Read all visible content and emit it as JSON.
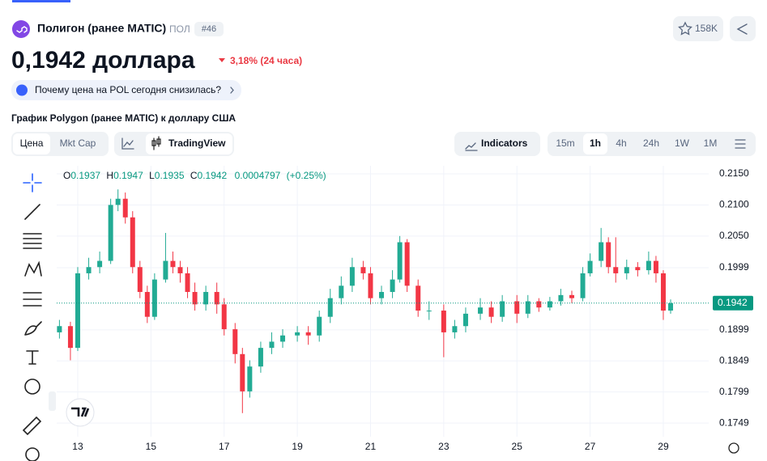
{
  "header": {
    "name": "Полигон (ранее MATIC)",
    "ticker": "ПОЛ",
    "rank": "#46",
    "watchlist_count": "158K",
    "price": "0,1942 доллара",
    "change": "3,18% (24 часа)",
    "question": "Почему цена на POL сегодня снизилась?"
  },
  "chart_section": {
    "heading": "График Polygon (ранее MATIC) к доллару США",
    "tabs": [
      "Цена",
      "Mkt Cap"
    ],
    "view_button": "TradingView",
    "indicators": "Indicators",
    "timeframes": [
      "15m",
      "1h",
      "4h",
      "24h",
      "1W",
      "1M"
    ]
  },
  "chart_data": {
    "type": "candlestick",
    "x": [
      12.5,
      12.8,
      13.0,
      13.3,
      13.6,
      13.9,
      14.1,
      14.3,
      14.5,
      14.7,
      14.9,
      15.1,
      15.4,
      15.6,
      15.8,
      16.0,
      16.2,
      16.5,
      16.8,
      17.0,
      17.3,
      17.5,
      17.7,
      18.0,
      18.3,
      18.6,
      19.0,
      19.3,
      19.6,
      19.9,
      20.2,
      20.5,
      20.8,
      21.0,
      21.3,
      21.6,
      21.8,
      22.0,
      22.3,
      22.6,
      23.0,
      23.3,
      23.6,
      24.0,
      24.3,
      24.6,
      25.0,
      25.3,
      25.6,
      25.9,
      26.2,
      26.5,
      26.8,
      27.0,
      27.3,
      27.5,
      27.7,
      28.0,
      28.3,
      28.6,
      28.8,
      29.0,
      29.2
    ],
    "open": [
      0.1895,
      0.1905,
      0.187,
      0.199,
      0.2,
      0.201,
      0.21,
      0.211,
      0.208,
      0.2,
      0.196,
      0.192,
      0.198,
      0.201,
      0.2,
      0.199,
      0.196,
      0.194,
      0.196,
      0.194,
      0.19,
      0.186,
      0.18,
      0.184,
      0.187,
      0.188,
      0.189,
      0.1895,
      0.189,
      0.192,
      0.195,
      0.197,
      0.2,
      0.199,
      0.195,
      0.196,
      0.198,
      0.204,
      0.197,
      0.193,
      0.193,
      0.1895,
      0.1905,
      0.1925,
      0.1935,
      0.192,
      0.1945,
      0.1925,
      0.1945,
      0.1935,
      0.1945,
      0.1955,
      0.195,
      0.199,
      0.201,
      0.204,
      0.2,
      0.199,
      0.2,
      0.1995,
      0.201,
      0.199,
      0.193
    ],
    "high": [
      0.1915,
      0.1912,
      0.2,
      0.2015,
      0.2025,
      0.211,
      0.2125,
      0.212,
      0.209,
      0.201,
      0.197,
      0.199,
      0.2055,
      0.2025,
      0.201,
      0.2,
      0.1975,
      0.197,
      0.1975,
      0.195,
      0.191,
      0.187,
      0.185,
      0.188,
      0.1895,
      0.19,
      0.1905,
      0.1905,
      0.193,
      0.1965,
      0.1985,
      0.2015,
      0.201,
      0.2,
      0.197,
      0.1995,
      0.205,
      0.2045,
      0.198,
      0.1945,
      0.194,
      0.1915,
      0.1935,
      0.195,
      0.1945,
      0.1955,
      0.1955,
      0.1955,
      0.195,
      0.1952,
      0.1965,
      0.1962,
      0.2,
      0.2022,
      0.2063,
      0.2048,
      0.2048,
      0.2012,
      0.2008,
      0.2025,
      0.2018,
      0.1995,
      0.1948
    ],
    "low": [
      0.1885,
      0.185,
      0.1865,
      0.198,
      0.199,
      0.2005,
      0.209,
      0.207,
      0.199,
      0.195,
      0.191,
      0.1915,
      0.1975,
      0.199,
      0.1975,
      0.195,
      0.193,
      0.193,
      0.1925,
      0.189,
      0.1845,
      0.1765,
      0.179,
      0.183,
      0.186,
      0.187,
      0.188,
      0.1875,
      0.188,
      0.191,
      0.194,
      0.196,
      0.198,
      0.194,
      0.194,
      0.195,
      0.1975,
      0.196,
      0.192,
      0.1915,
      0.1855,
      0.1885,
      0.1895,
      0.1915,
      0.191,
      0.1912,
      0.191,
      0.1918,
      0.1928,
      0.193,
      0.1938,
      0.1942,
      0.1945,
      0.1985,
      0.2,
      0.199,
      0.1975,
      0.198,
      0.1985,
      0.1988,
      0.1975,
      0.1915,
      0.1925
    ],
    "close": [
      0.1905,
      0.187,
      0.199,
      0.2,
      0.201,
      0.21,
      0.211,
      0.208,
      0.2,
      0.196,
      0.192,
      0.198,
      0.201,
      0.2,
      0.199,
      0.196,
      0.194,
      0.196,
      0.194,
      0.19,
      0.186,
      0.18,
      0.184,
      0.187,
      0.188,
      0.189,
      0.1895,
      0.189,
      0.192,
      0.195,
      0.197,
      0.2,
      0.199,
      0.195,
      0.196,
      0.198,
      0.204,
      0.197,
      0.193,
      0.193,
      0.1895,
      0.1905,
      0.1925,
      0.1935,
      0.192,
      0.1945,
      0.1925,
      0.1945,
      0.1935,
      0.1945,
      0.1955,
      0.195,
      0.199,
      0.201,
      0.204,
      0.2,
      0.199,
      0.2,
      0.1995,
      0.201,
      0.199,
      0.193,
      0.1942
    ],
    "up_color": "#22ab94",
    "down_color": "#f23645",
    "xlim": [
      12.425,
      30.24
    ],
    "ylim": [
      0.1727,
      0.2163
    ],
    "xticks": [
      13,
      15,
      17,
      19,
      21,
      23,
      25,
      27,
      29
    ],
    "yticks": [
      {
        "value": 0.215,
        "label": "0.2150"
      },
      {
        "value": 0.21,
        "label": "0.2100"
      },
      {
        "value": 0.205,
        "label": "0.2050"
      },
      0.1999,
      0.1899,
      0.1849,
      0.1799,
      0.1749
    ],
    "grid": true,
    "last_price": 0.1942,
    "readout": {
      "open_label": "O",
      "open": 0.1937,
      "high_label": "H",
      "high": 0.1947,
      "low_label": "L",
      "low": 0.1935,
      "close_label": "C",
      "close": 0.1942,
      "change": 0.0004797,
      "change_pct": "(+0.25%)"
    }
  }
}
